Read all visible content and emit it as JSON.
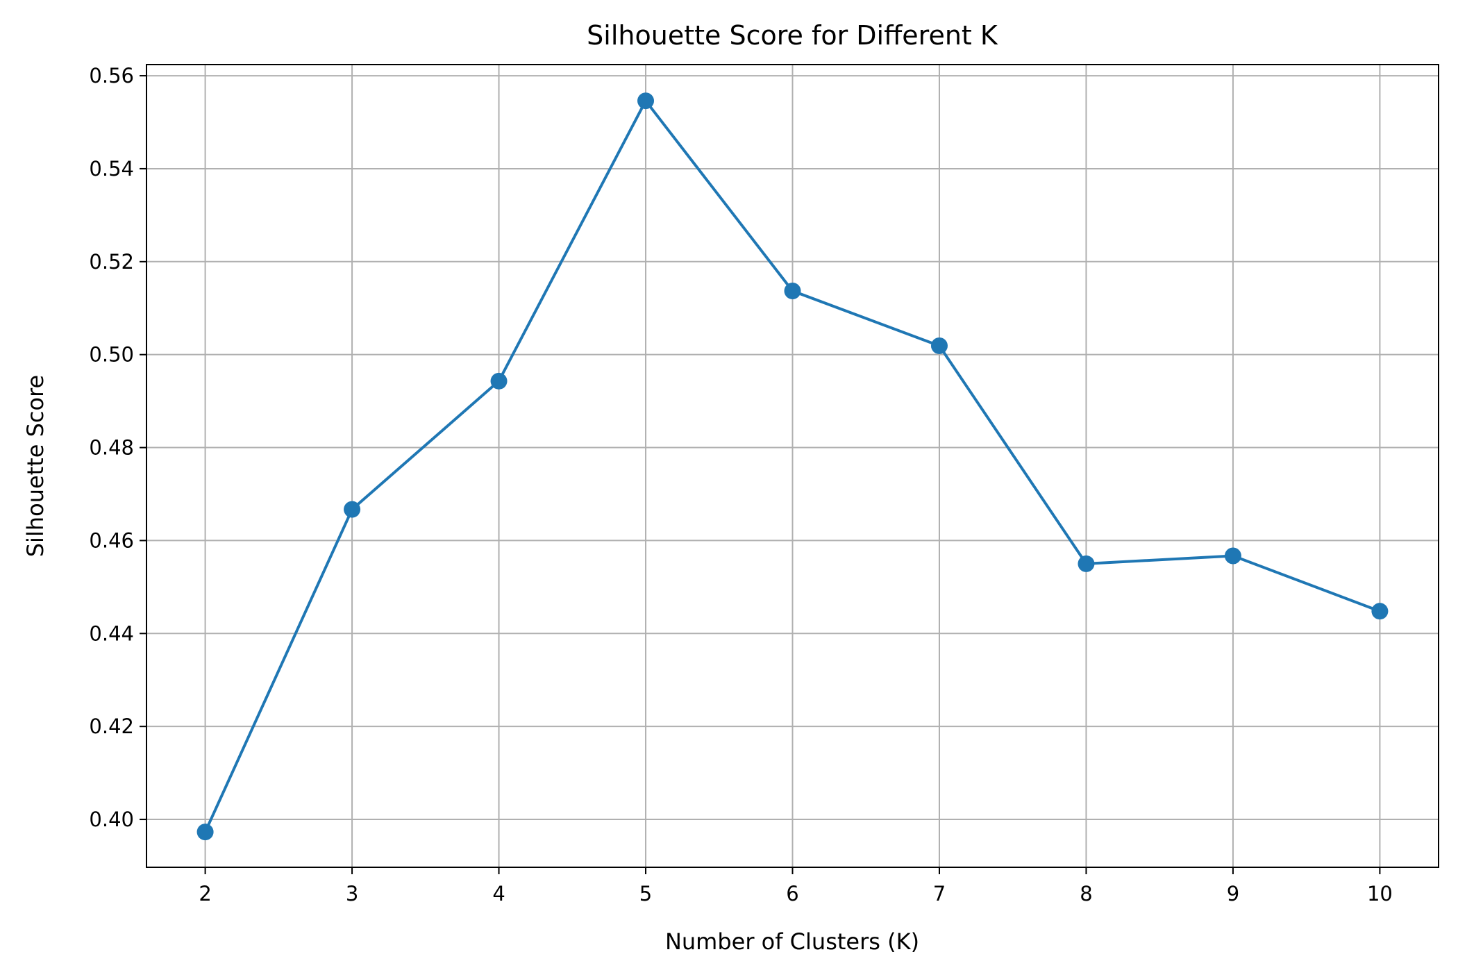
{
  "chart_data": {
    "type": "line",
    "title": "Silhouette Score for Different K",
    "xlabel": "Number of Clusters (K)",
    "ylabel": "Silhouette Score",
    "x": [
      2,
      3,
      4,
      5,
      6,
      7,
      8,
      9,
      10
    ],
    "series": [
      {
        "values": [
          0.3973,
          0.4667,
          0.4943,
          0.5546,
          0.5137,
          0.5019,
          0.455,
          0.4567,
          0.4448
        ],
        "color": "#1f77b4",
        "marker": "circle"
      }
    ],
    "xlim": [
      1.6,
      10.4
    ],
    "ylim": [
      0.3897,
      0.5624
    ],
    "xticks": [
      "2",
      "3",
      "4",
      "5",
      "6",
      "7",
      "8",
      "9",
      "10"
    ],
    "yticks": [
      "0.40",
      "0.42",
      "0.44",
      "0.46",
      "0.48",
      "0.50",
      "0.52",
      "0.54",
      "0.56"
    ],
    "grid": true
  }
}
